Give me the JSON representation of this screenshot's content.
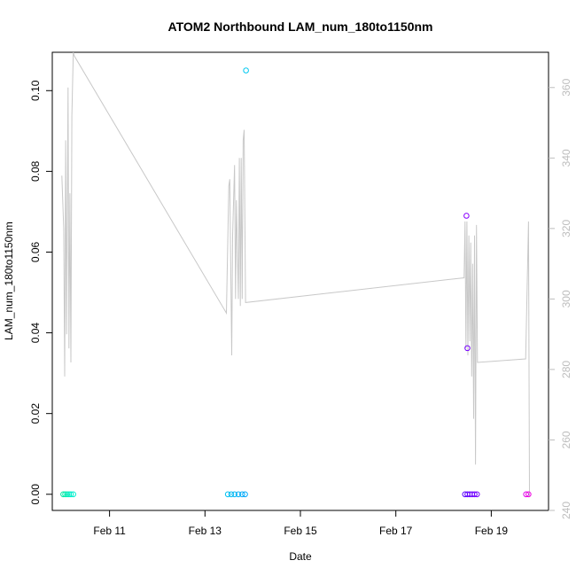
{
  "chart_data": {
    "type": "scatter",
    "title": "ATOM2 Northbound LAM_num_180to1150nm",
    "xlabel": "Date",
    "ylabel": "LAM_num_180to1150nm",
    "x_axis": {
      "unit": "days since Feb 10 00:00",
      "range": [
        -0.2,
        10.2
      ],
      "ticks": [
        {
          "value": 1,
          "label": "Feb 11"
        },
        {
          "value": 3,
          "label": "Feb 13"
        },
        {
          "value": 5,
          "label": "Feb 15"
        },
        {
          "value": 7,
          "label": "Feb 17"
        },
        {
          "value": 9,
          "label": "Feb 19"
        }
      ]
    },
    "y_axis_left": {
      "range": [
        -0.004,
        0.1095
      ],
      "ticks": [
        0.0,
        0.02,
        0.04,
        0.06,
        0.08,
        0.1
      ],
      "tick_labels": [
        "0.00",
        "0.02",
        "0.04",
        "0.06",
        "0.08",
        "0.10"
      ]
    },
    "y_axis_right": {
      "range": [
        240,
        370
      ],
      "ticks": [
        240,
        260,
        280,
        300,
        320,
        340,
        360
      ],
      "tick_labels": [
        "240",
        "260",
        "280",
        "300",
        "320",
        "340",
        "360"
      ],
      "color": "#bdbdbd"
    },
    "grid": false,
    "legend": "none",
    "series": [
      {
        "kind": "points",
        "axis": "left",
        "points": [
          {
            "x": 0.03,
            "y": 0.0,
            "color": "#00e8a0"
          },
          {
            "x": 0.07,
            "y": 0.0,
            "color": "#00ebaa"
          },
          {
            "x": 0.11,
            "y": 0.0,
            "color": "#00ecb5"
          },
          {
            "x": 0.15,
            "y": 0.0,
            "color": "#00edc0"
          },
          {
            "x": 0.19,
            "y": 0.0,
            "color": "#00eec8"
          },
          {
            "x": 0.24,
            "y": 0.0,
            "color": "#00efd0"
          },
          {
            "x": 3.48,
            "y": 0.0,
            "color": "#00c0f0"
          },
          {
            "x": 3.55,
            "y": 0.0,
            "color": "#00bbf2"
          },
          {
            "x": 3.62,
            "y": 0.0,
            "color": "#00b6f4"
          },
          {
            "x": 3.7,
            "y": 0.0,
            "color": "#00b0f6"
          },
          {
            "x": 3.78,
            "y": 0.0,
            "color": "#00abf8"
          },
          {
            "x": 3.84,
            "y": 0.0,
            "color": "#00a6fa"
          },
          {
            "x": 3.86,
            "y": 0.105,
            "color": "#00c8f0"
          },
          {
            "x": 8.45,
            "y": 0.0,
            "color": "#5a00ff"
          },
          {
            "x": 8.5,
            "y": 0.0,
            "color": "#6000ff"
          },
          {
            "x": 8.55,
            "y": 0.0,
            "color": "#6600ff"
          },
          {
            "x": 8.6,
            "y": 0.0,
            "color": "#6c00ff"
          },
          {
            "x": 8.65,
            "y": 0.0,
            "color": "#7200ff"
          },
          {
            "x": 8.7,
            "y": 0.0,
            "color": "#7800ff"
          },
          {
            "x": 8.48,
            "y": 0.069,
            "color": "#8a00ff"
          },
          {
            "x": 8.5,
            "y": 0.0362,
            "color": "#7800ff"
          },
          {
            "x": 9.73,
            "y": 0.0,
            "color": "#e000ee"
          },
          {
            "x": 9.78,
            "y": 0.0,
            "color": "#ee00e0"
          }
        ]
      },
      {
        "kind": "line",
        "axis": "right",
        "color": "#c8c8c8",
        "points": [
          [
            0.0,
            335
          ],
          [
            0.04,
            320
          ],
          [
            0.06,
            278
          ],
          [
            0.08,
            345
          ],
          [
            0.1,
            290
          ],
          [
            0.13,
            360
          ],
          [
            0.15,
            286
          ],
          [
            0.17,
            330
          ],
          [
            0.19,
            282
          ],
          [
            0.21,
            352
          ],
          [
            0.24,
            370
          ],
          [
            0.26,
            369
          ],
          [
            3.45,
            296
          ],
          [
            3.5,
            332
          ],
          [
            3.52,
            334
          ],
          [
            3.56,
            284
          ],
          [
            3.58,
            318
          ],
          [
            3.62,
            338
          ],
          [
            3.64,
            300
          ],
          [
            3.66,
            328
          ],
          [
            3.7,
            300
          ],
          [
            3.72,
            340
          ],
          [
            3.74,
            298
          ],
          [
            3.76,
            340
          ],
          [
            3.78,
            300
          ],
          [
            3.8,
            345
          ],
          [
            3.82,
            348
          ],
          [
            3.85,
            299
          ],
          [
            8.43,
            306
          ],
          [
            8.45,
            322
          ],
          [
            8.47,
            286
          ],
          [
            8.49,
            322
          ],
          [
            8.51,
            284
          ],
          [
            8.53,
            318
          ],
          [
            8.55,
            288
          ],
          [
            8.57,
            316
          ],
          [
            8.59,
            278
          ],
          [
            8.61,
            310
          ],
          [
            8.63,
            266
          ],
          [
            8.65,
            318
          ],
          [
            8.67,
            253
          ],
          [
            8.69,
            321
          ],
          [
            8.71,
            282
          ],
          [
            9.72,
            283
          ],
          [
            9.78,
            322
          ],
          [
            9.8,
            244
          ]
        ]
      }
    ]
  }
}
